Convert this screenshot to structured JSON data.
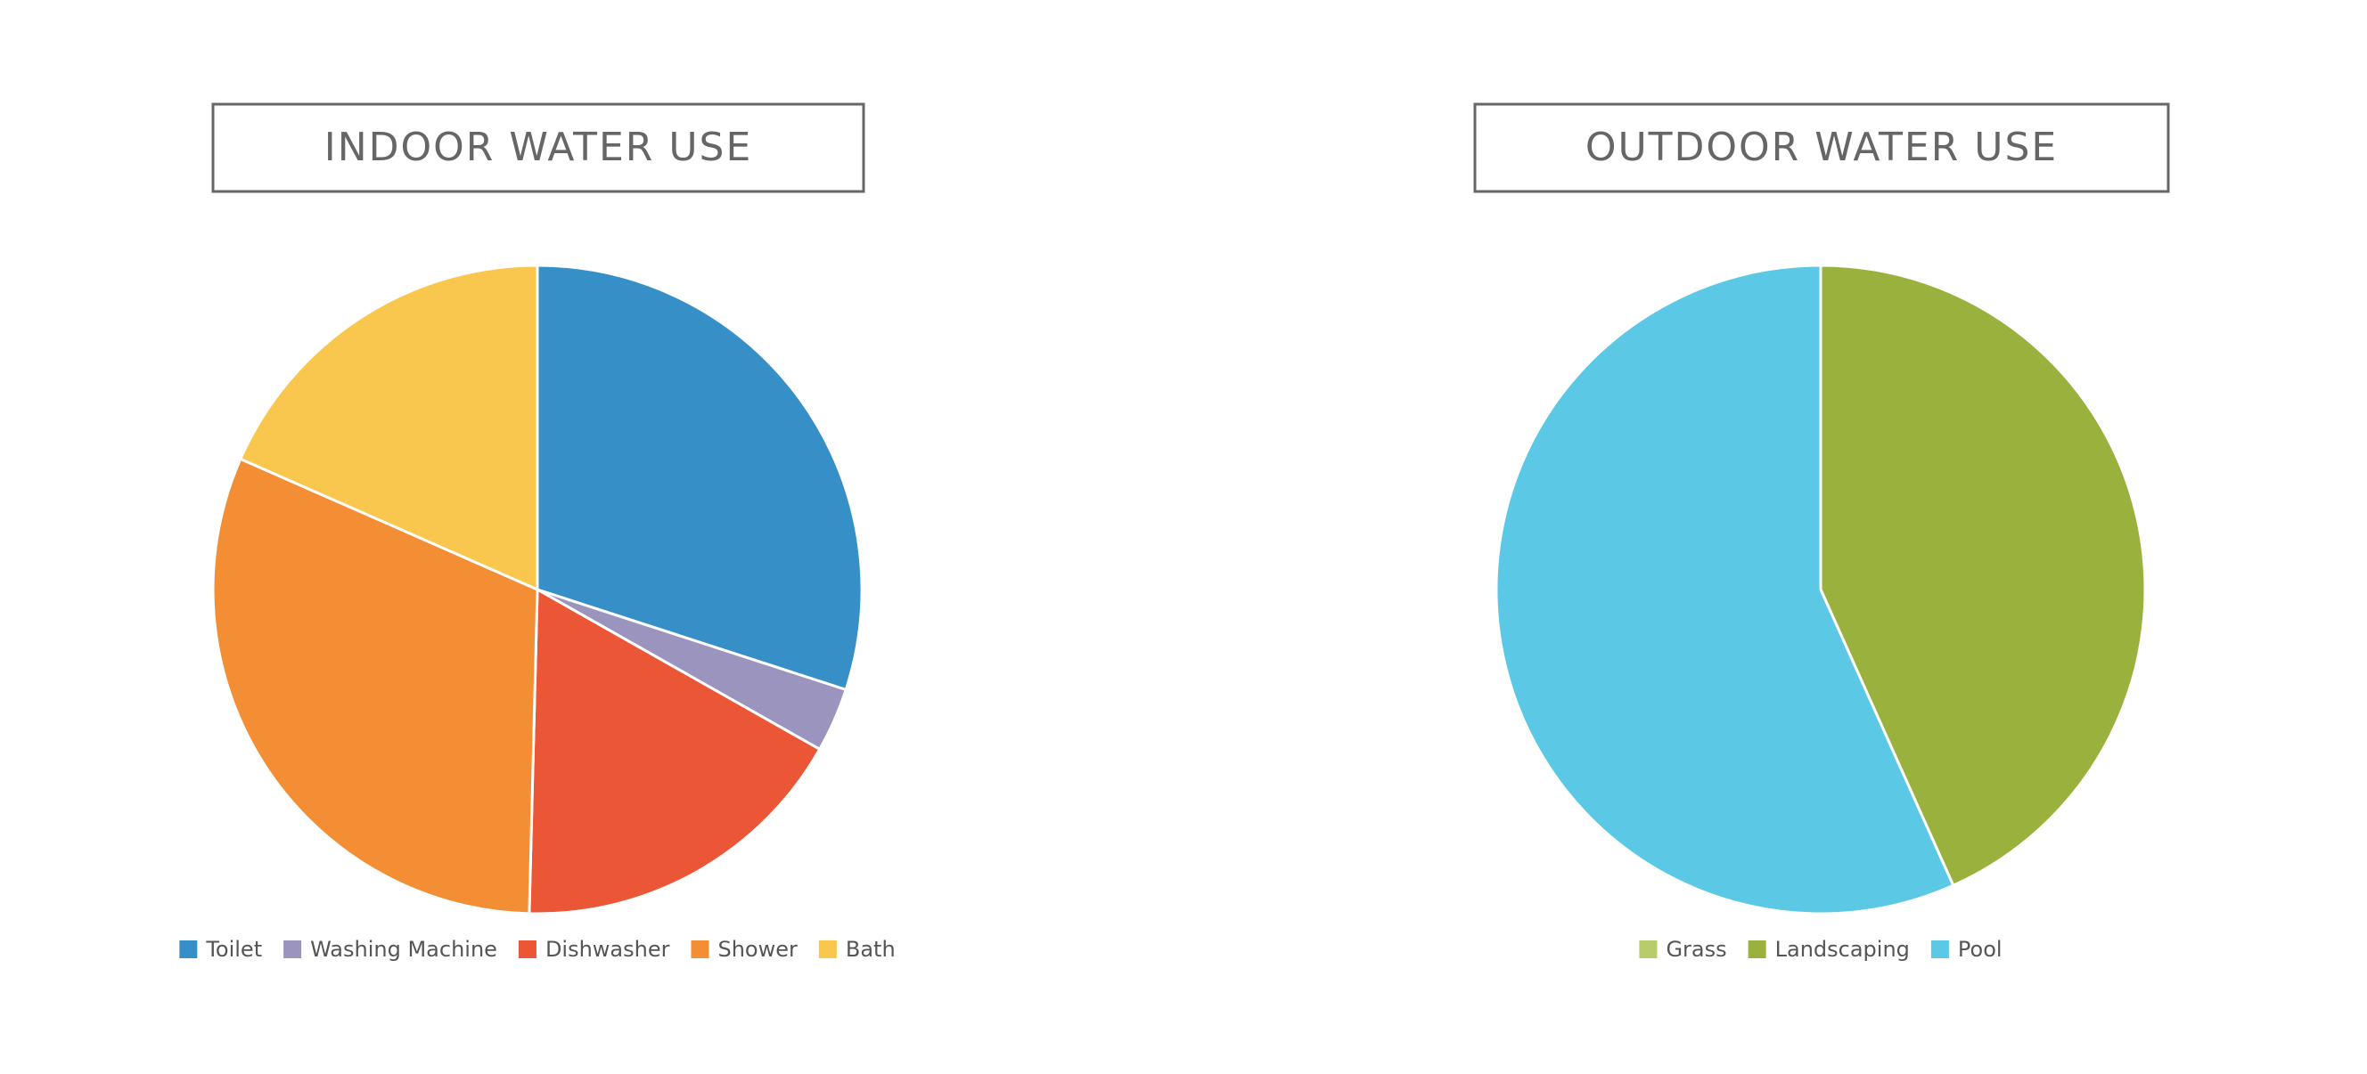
{
  "chart_data": [
    {
      "type": "pie",
      "title": "INDOOR WATER USE",
      "categories": [
        "Toilet",
        "Washing Machine",
        "Dishwasher",
        "Shower",
        "Bath"
      ],
      "values": [
        30.0,
        3.2,
        17.2,
        31.2,
        18.4
      ],
      "colors": [
        "#378fc8",
        "#9a94bf",
        "#eb5736",
        "#f38e35",
        "#f9c74e"
      ]
    },
    {
      "type": "pie",
      "title": "OUTDOOR WATER USE",
      "categories": [
        "Grass",
        "Landscaping",
        "Pool"
      ],
      "values": [
        0,
        43.3,
        56.7
      ],
      "colors": [
        "#b9cc6c",
        "#9ab23d",
        "#5bc9e5"
      ]
    }
  ]
}
